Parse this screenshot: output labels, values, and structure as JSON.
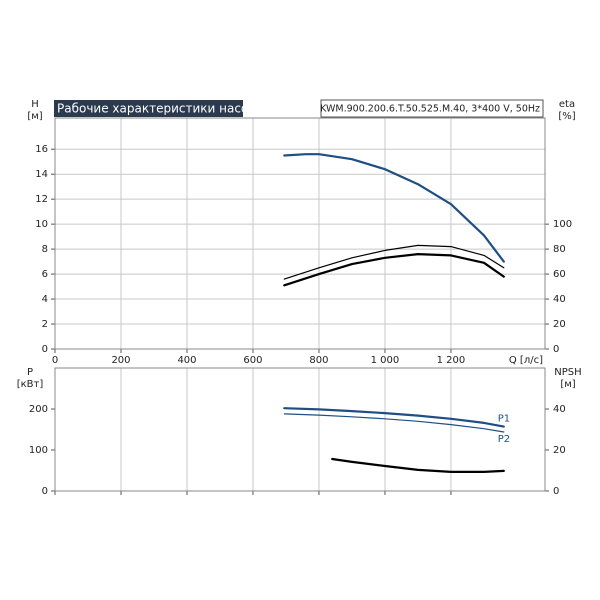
{
  "chart_data": [
    {
      "type": "line",
      "title": "Рабочие характеристики насоса",
      "subtitle": "KWM.900.200.6.T.50.525.M.40, 3*400 V, 50Hz",
      "ylabel": "H",
      "yunit": "[м]",
      "y2label": "eta",
      "y2unit": "[%]",
      "xlabel": "Q [л/с]",
      "xlim": [
        0,
        1485
      ],
      "xticks": [
        0,
        200,
        400,
        600,
        800,
        {
          "value": 1000,
          "label": "1 000"
        },
        {
          "value": 1200,
          "label": "1 200"
        }
      ],
      "ylim": [
        0,
        18.5
      ],
      "yticks": [
        0,
        2,
        4,
        6,
        8,
        10,
        12,
        14,
        16
      ],
      "y2lim": [
        0,
        185
      ],
      "y2ticks": [
        0,
        20,
        40,
        60,
        80,
        100
      ],
      "grid": "both",
      "series": [
        {
          "color": "#1f4e85",
          "line_width": 2.2,
          "x": [
            695,
            760,
            800,
            900,
            1000,
            1100,
            1200,
            1300,
            1360
          ],
          "values": [
            15.5,
            15.6,
            15.6,
            15.2,
            14.4,
            13.2,
            11.6,
            9.1,
            7.0
          ]
        },
        {
          "color": "#000000",
          "line_width": 1.2,
          "axis": "y2",
          "x": [
            695,
            800,
            900,
            1000,
            1100,
            1200,
            1300,
            1360
          ],
          "values": [
            56,
            65,
            73,
            79,
            83,
            82,
            75,
            65
          ]
        },
        {
          "color": "#000000",
          "line_width": 2.2,
          "axis": "y2",
          "x": [
            695,
            800,
            900,
            1000,
            1100,
            1200,
            1300,
            1360
          ],
          "values": [
            51,
            60,
            68,
            73,
            76,
            75,
            69,
            58
          ]
        }
      ]
    },
    {
      "type": "line",
      "ylabel": "P",
      "yunit": "[кВт]",
      "y2label": "NPSH",
      "y2unit": "[м]",
      "xlim": [
        0,
        1485
      ],
      "xticks": [
        0,
        200,
        400,
        600,
        800,
        1000,
        1200
      ],
      "ylim": [
        0,
        300
      ],
      "yticks": [
        0,
        100,
        200
      ],
      "y2lim": [
        0,
        60
      ],
      "y2ticks": [
        0,
        20,
        40
      ],
      "grid": "x",
      "series": [
        {
          "name": "P1",
          "color": "#1f4e85",
          "line_width": 2.2,
          "x": [
            695,
            800,
            900,
            1000,
            1100,
            1200,
            1300,
            1360
          ],
          "values": [
            202,
            199,
            195,
            190,
            184,
            176,
            166,
            157
          ]
        },
        {
          "name": "P2",
          "color": "#1f4e85",
          "line_width": 1.2,
          "x": [
            695,
            800,
            900,
            1000,
            1100,
            1200,
            1300,
            1360
          ],
          "values": [
            188,
            185,
            181,
            176,
            170,
            162,
            152,
            144
          ]
        },
        {
          "color": "#000000",
          "line_width": 2.2,
          "axis": "y2",
          "x": [
            840,
            900,
            1000,
            1100,
            1200,
            1300,
            1360
          ],
          "values": [
            15.6,
            14.2,
            12.2,
            10.3,
            9.3,
            9.3,
            9.8
          ]
        }
      ]
    }
  ]
}
